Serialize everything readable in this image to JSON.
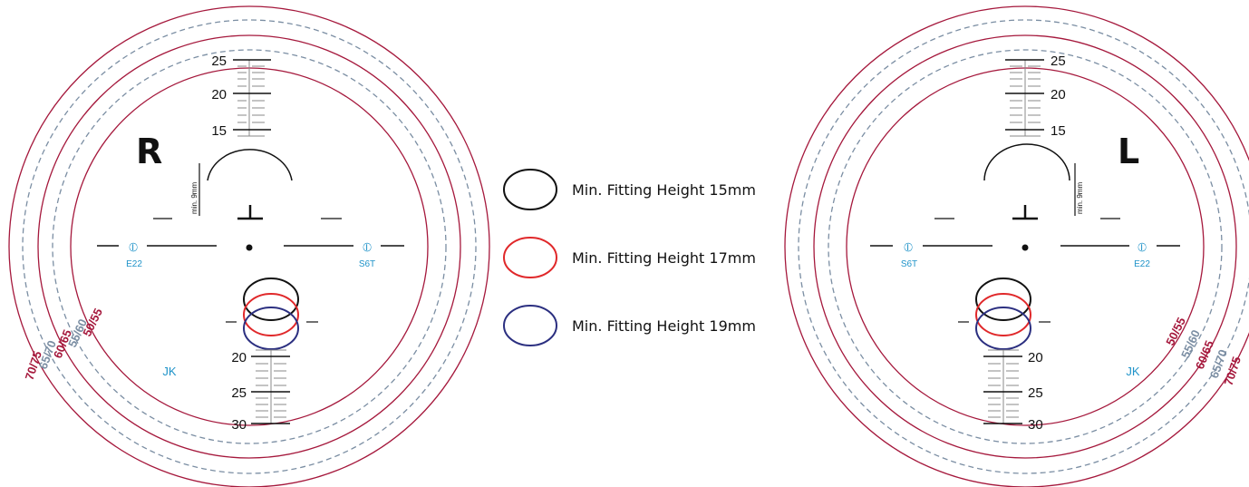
{
  "colors": {
    "crimson": "#a5183c",
    "slate": "#7b8ea3",
    "black": "#111111",
    "cyan": "#1f93c9",
    "legend_black": "#111111",
    "legend_red": "#e0282a",
    "legend_blue": "#2b2f80"
  },
  "right_lens": {
    "eye_label": "R",
    "top_scale_labels": [
      "25",
      "20",
      "15"
    ],
    "bottom_scale_labels": [
      "20",
      "25",
      "30"
    ],
    "min_label": "min. 9mm",
    "engraving_left_symbol": "⦶",
    "engraving_left_code": "E22",
    "engraving_right_symbol": "⦶",
    "engraving_right_code": "S6T",
    "maker_mark": "JK",
    "size_labels": [
      "50/55",
      "55/60",
      "60/65",
      "65/70",
      "70/75"
    ]
  },
  "left_lens": {
    "eye_label": "L",
    "top_scale_labels": [
      "25",
      "20",
      "15"
    ],
    "bottom_scale_labels": [
      "20",
      "25",
      "30"
    ],
    "min_label": "min. 9mm",
    "engraving_left_symbol": "⦶",
    "engraving_left_code": "S6T",
    "engraving_right_symbol": "⦶",
    "engraving_right_code": "E22",
    "maker_mark": "JK",
    "size_labels": [
      "50/55",
      "55/60",
      "60/65",
      "65/70",
      "70/75"
    ]
  },
  "legend": [
    {
      "label": "Min. Fitting Height 15mm",
      "color": "#111111"
    },
    {
      "label": "Min. Fitting Height 17mm",
      "color": "#e0282a"
    },
    {
      "label": "Min. Fitting Height 19mm",
      "color": "#2b2f80"
    }
  ]
}
